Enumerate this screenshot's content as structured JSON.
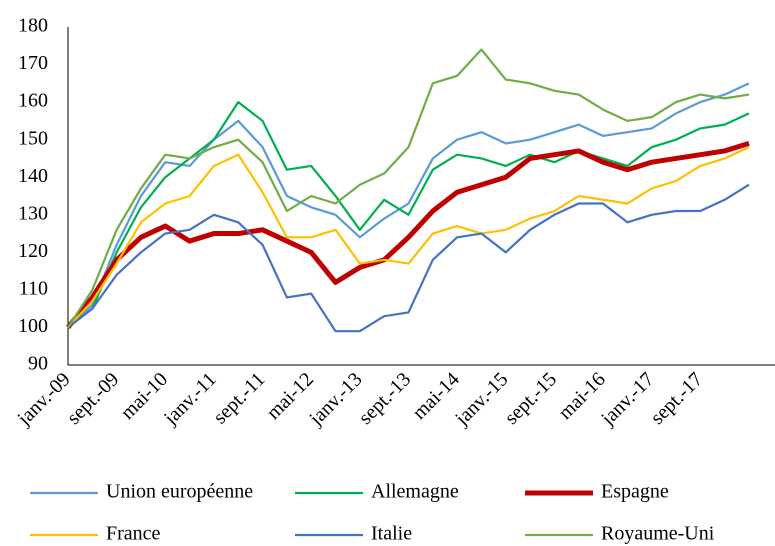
{
  "chart_data": {
    "type": "line",
    "categories": [
      "janv.-09",
      null,
      "sept.-09",
      null,
      "mai-10",
      null,
      "janv.-11",
      null,
      "sept.-11",
      null,
      "mai-12",
      null,
      "janv.-13",
      null,
      "sept.-13",
      null,
      "mai-14",
      null,
      "janv.-15",
      null,
      "sept.-15",
      null,
      "mai-16",
      null,
      "janv.-17",
      null,
      "sept.-17",
      null,
      null
    ],
    "ylim": [
      90,
      180
    ],
    "yticks": [
      90,
      100,
      110,
      120,
      130,
      140,
      150,
      160,
      170,
      180
    ],
    "series": [
      {
        "name": "Union européenne",
        "color": "#5b9bd5",
        "linewidth": 2.2,
        "values": [
          100,
          106,
          122,
          135,
          144,
          143,
          150,
          155,
          148,
          135,
          132,
          130,
          124,
          129,
          133,
          145,
          150,
          152,
          149,
          150,
          152,
          154,
          151,
          152,
          153,
          157,
          160,
          162,
          165
        ]
      },
      {
        "name": "Allemagne",
        "color": "#00b050",
        "linewidth": 2.2,
        "values": [
          100,
          105,
          120,
          132,
          140,
          145,
          150,
          160,
          155,
          142,
          143,
          135,
          126,
          134,
          130,
          142,
          146,
          145,
          143,
          146,
          144,
          147,
          145,
          143,
          148,
          150,
          153,
          154,
          157
        ]
      },
      {
        "name": "Espagne",
        "color": "#c00000",
        "linewidth": 5,
        "values": [
          100,
          108,
          118,
          124,
          127,
          123,
          125,
          125,
          126,
          123,
          120,
          112,
          116,
          118,
          124,
          131,
          136,
          138,
          140,
          145,
          146,
          147,
          144,
          142,
          144,
          145,
          146,
          147,
          149
        ]
      },
      {
        "name": "France",
        "color": "#ffc000",
        "linewidth": 2.2,
        "values": [
          100,
          107,
          117,
          128,
          133,
          135,
          143,
          146,
          136,
          124,
          124,
          126,
          117,
          118,
          117,
          125,
          127,
          125,
          126,
          129,
          131,
          135,
          134,
          133,
          137,
          139,
          143,
          145,
          148
        ]
      },
      {
        "name": "Italie",
        "color": "#4472c4",
        "linewidth": 2.2,
        "values": [
          100,
          105,
          114,
          120,
          125,
          126,
          130,
          128,
          122,
          108,
          109,
          99,
          99,
          103,
          104,
          118,
          124,
          125,
          120,
          126,
          130,
          133,
          133,
          128,
          130,
          131,
          131,
          134,
          138
        ]
      },
      {
        "name": "Royaume-Uni",
        "color": "#70ad47",
        "linewidth": 2.2,
        "values": [
          100,
          110,
          126,
          137,
          146,
          145,
          148,
          150,
          144,
          131,
          135,
          133,
          138,
          141,
          148,
          165,
          167,
          174,
          166,
          165,
          163,
          162,
          158,
          155,
          156,
          160,
          162,
          161,
          162
        ]
      }
    ]
  }
}
